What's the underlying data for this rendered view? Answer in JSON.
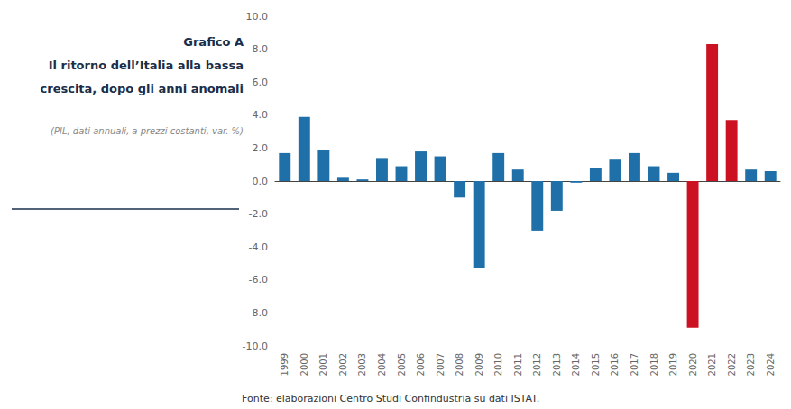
{
  "chart_data": {
    "type": "bar",
    "title": "Grafico A\nIl ritorno dell’Italia alla bassa\ncrescita, dopo gli anni anomali",
    "subtitle": "(PIL, dati annuali, a prezzi costanti, var. %)",
    "annotations": [
      "Fonte: elaborazioni Centro Studi Confindustria su dati ISTAT."
    ],
    "categories": [
      "1999",
      "2000",
      "2001",
      "2002",
      "2003",
      "2004",
      "2005",
      "2006",
      "2007",
      "2008",
      "2009",
      "2010",
      "2011",
      "2012",
      "2013",
      "2014",
      "2015",
      "2016",
      "2017",
      "2018",
      "2019",
      "2020",
      "2021",
      "2022",
      "2023",
      "2024"
    ],
    "values": [
      1.7,
      3.9,
      1.9,
      0.2,
      0.1,
      1.4,
      0.9,
      1.8,
      1.5,
      -1.0,
      -5.3,
      1.7,
      0.7,
      -3.0,
      -1.8,
      -0.1,
      0.8,
      1.3,
      1.7,
      0.9,
      0.5,
      -8.9,
      8.3,
      3.7,
      0.7,
      0.6
    ],
    "colors": [
      "#1f6fa8",
      "#1f6fa8",
      "#1f6fa8",
      "#1f6fa8",
      "#1f6fa8",
      "#1f6fa8",
      "#1f6fa8",
      "#1f6fa8",
      "#1f6fa8",
      "#1f6fa8",
      "#1f6fa8",
      "#1f6fa8",
      "#1f6fa8",
      "#1f6fa8",
      "#1f6fa8",
      "#1f6fa8",
      "#1f6fa8",
      "#1f6fa8",
      "#1f6fa8",
      "#1f6fa8",
      "#1f6fa8",
      "#cc1122",
      "#cc1122",
      "#cc1122",
      "#1f6fa8",
      "#1f6fa8"
    ],
    "ylim": [
      -10,
      10
    ],
    "yticks": [
      {
        "value": -10,
        "label": "-10.0"
      },
      {
        "value": -8,
        "label": "-8.0"
      },
      {
        "value": -6,
        "label": "-6.0"
      },
      {
        "value": -4,
        "label": "-4.0"
      },
      {
        "value": -2,
        "label": "-2.0"
      },
      {
        "value": 0,
        "label": "0.0"
      },
      {
        "value": 2,
        "label": "2.0"
      },
      {
        "value": 4,
        "label": "4.0"
      },
      {
        "value": 6,
        "label": "6.0"
      },
      {
        "value": 8,
        "label": "8.0"
      },
      {
        "value": 10,
        "label": "10.0"
      }
    ],
    "grid": false
  }
}
